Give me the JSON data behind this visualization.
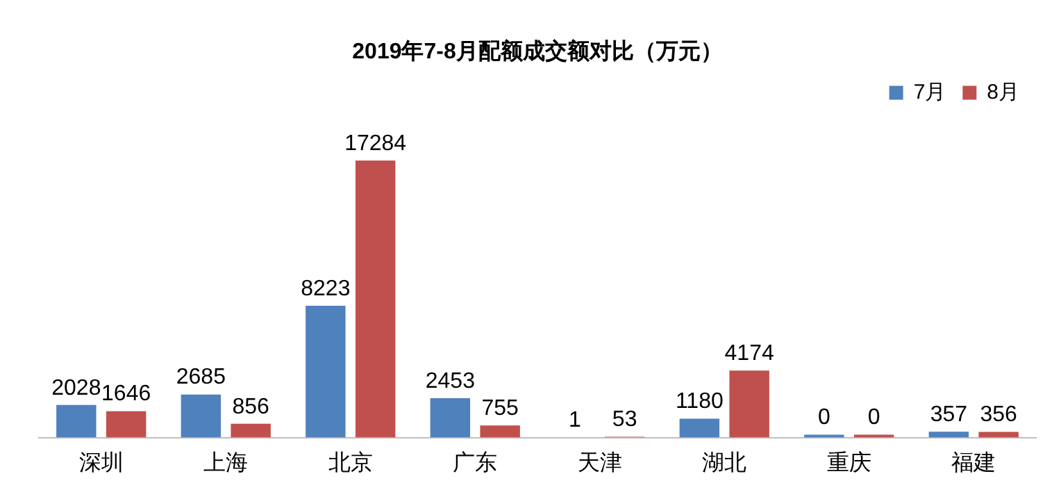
{
  "chart_data": {
    "type": "bar",
    "title": "2019年7-8月配额成交额对比（万元）",
    "categories": [
      "深圳",
      "上海",
      "北京",
      "广东",
      "天津",
      "湖北",
      "重庆",
      "福建"
    ],
    "series": [
      {
        "name": "7月",
        "color": "#4f81bd",
        "values": [
          2028,
          2685,
          8223,
          2453,
          1,
          1180,
          0,
          357
        ]
      },
      {
        "name": "8月",
        "color": "#c0504d",
        "values": [
          1646,
          856,
          17284,
          755,
          53,
          4174,
          0,
          356
        ]
      }
    ],
    "data_labels": true,
    "legend": "top right",
    "grid": false
  }
}
